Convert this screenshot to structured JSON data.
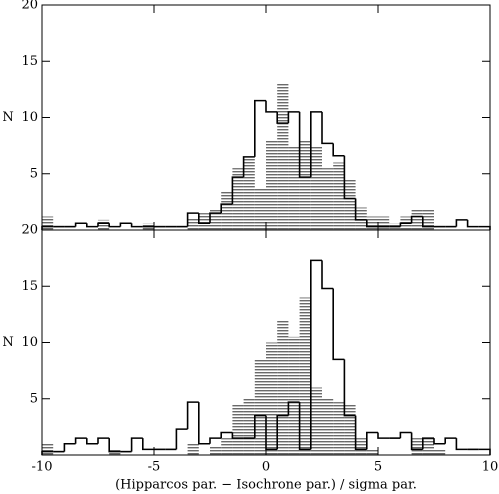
{
  "chart_data": [
    {
      "type": "histogram",
      "ylabel": "N",
      "bins": [
        -10,
        -9.5,
        -9,
        -8.5,
        -8,
        -7.5,
        -7,
        -6.5,
        -6,
        -5.5,
        -5,
        -4.5,
        -4,
        -3.5,
        -3,
        -2.5,
        -2,
        -1.5,
        -1,
        -0.5,
        0,
        0.5,
        1,
        1.5,
        2,
        2.5,
        3,
        3.5,
        4,
        4.5,
        5,
        5.5,
        6,
        6.5,
        7,
        7.5,
        8,
        8.5,
        9,
        9.5,
        10
      ],
      "series": [
        {
          "color": "#777777",
          "values": [
            1.2,
            0,
            0,
            0,
            0,
            0.9,
            0,
            0,
            0,
            0.6,
            0,
            0,
            0,
            1.1,
            1.5,
            1.8,
            3.5,
            5.5,
            6.5,
            3.7,
            8,
            13,
            7.5,
            8,
            7.5,
            5.5,
            6,
            4.5,
            2,
            1.2,
            1.2,
            0.6,
            1.2,
            1.8,
            1.8,
            0,
            0,
            0,
            0,
            0
          ]
        },
        {
          "color": "#000000",
          "values": [
            0.3,
            0.3,
            0.3,
            0.6,
            0.3,
            0.6,
            0.3,
            0.6,
            0.3,
            0.3,
            0.3,
            0.3,
            0.3,
            1.5,
            0.6,
            1.5,
            2.3,
            4.7,
            6.5,
            11.5,
            10.5,
            9.5,
            10.5,
            4.7,
            10.5,
            7.7,
            6.6,
            2.8,
            0.9,
            0.3,
            0.3,
            0.3,
            0.6,
            1.2,
            0.3,
            0.3,
            0.3,
            0.9,
            0.3,
            0.3
          ]
        }
      ],
      "xlim": [
        -10,
        10
      ],
      "xticks": [
        -10,
        -5,
        0,
        5,
        10
      ],
      "ylim": [
        0,
        20
      ],
      "yticks": [
        5,
        10,
        15,
        20
      ]
    },
    {
      "type": "histogram",
      "ylabel": "N",
      "xlabel": "(Hipparcos par. − Isochrone par.) / sigma par.",
      "bins": [
        -10,
        -9.5,
        -9,
        -8.5,
        -8,
        -7.5,
        -7,
        -6.5,
        -6,
        -5.5,
        -5,
        -4.5,
        -4,
        -3.5,
        -3,
        -2.5,
        -2,
        -1.5,
        -1,
        -0.5,
        0,
        0.5,
        1,
        1.5,
        2,
        2.5,
        3,
        3.5,
        4,
        4.5,
        5,
        5.5,
        6,
        6.5,
        7,
        7.5,
        8,
        8.5,
        9,
        9.5,
        10
      ],
      "series": [
        {
          "color": "#777777",
          "values": [
            1,
            0,
            0,
            0,
            0,
            0,
            0.5,
            0,
            0,
            0,
            0,
            0,
            0,
            1,
            0,
            0.8,
            1.5,
            4.5,
            5,
            8.5,
            10,
            12,
            10.5,
            14,
            6,
            5,
            4.7,
            4.5,
            1.5,
            0.5,
            0,
            0,
            0,
            1.5,
            1.5,
            0.5,
            0,
            0,
            0,
            0
          ]
        },
        {
          "color": "#000000",
          "values": [
            0.3,
            0.3,
            1,
            1.5,
            1,
            1.5,
            0.3,
            0.3,
            1.5,
            0.5,
            0.5,
            0.5,
            2.3,
            4.7,
            1,
            1.5,
            2,
            1.5,
            1.5,
            3.5,
            0.5,
            3.5,
            4.7,
            0.5,
            17.3,
            14.8,
            8.5,
            3.5,
            0.5,
            2,
            1.5,
            1.5,
            2,
            0.5,
            1.5,
            1,
            1.5,
            0.5,
            0.5,
            0.5
          ]
        }
      ],
      "xlim": [
        -10,
        10
      ],
      "xticks": [
        -10,
        -5,
        0,
        5,
        10
      ],
      "ylim": [
        0,
        20
      ],
      "yticks": [
        5,
        10,
        15,
        20
      ]
    }
  ]
}
